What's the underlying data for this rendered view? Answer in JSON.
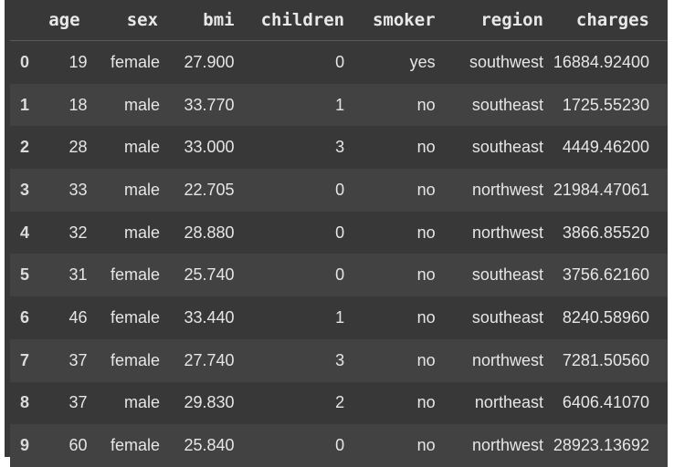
{
  "table": {
    "columns": [
      "",
      "age",
      "sex",
      "bmi",
      "children",
      "smoker",
      "region",
      "charges"
    ],
    "rows": [
      [
        "0",
        "19",
        "female",
        "27.900",
        "0",
        "yes",
        "southwest",
        "16884.92400"
      ],
      [
        "1",
        "18",
        "male",
        "33.770",
        "1",
        "no",
        "southeast",
        "1725.55230"
      ],
      [
        "2",
        "28",
        "male",
        "33.000",
        "3",
        "no",
        "southeast",
        "4449.46200"
      ],
      [
        "3",
        "33",
        "male",
        "22.705",
        "0",
        "no",
        "northwest",
        "21984.47061"
      ],
      [
        "4",
        "32",
        "male",
        "28.880",
        "0",
        "no",
        "northwest",
        "3866.85520"
      ],
      [
        "5",
        "31",
        "female",
        "25.740",
        "0",
        "no",
        "southeast",
        "3756.62160"
      ],
      [
        "6",
        "46",
        "female",
        "33.440",
        "1",
        "no",
        "southeast",
        "8240.58960"
      ],
      [
        "7",
        "37",
        "female",
        "27.740",
        "3",
        "no",
        "northwest",
        "7281.50560"
      ],
      [
        "8",
        "37",
        "male",
        "29.830",
        "2",
        "no",
        "northeast",
        "6406.41070"
      ],
      [
        "9",
        "60",
        "female",
        "25.840",
        "0",
        "no",
        "northwest",
        "28923.13692"
      ]
    ]
  },
  "colors": {
    "background": "#383838",
    "row_alt": "#424242",
    "text": "#e6e6e6"
  }
}
